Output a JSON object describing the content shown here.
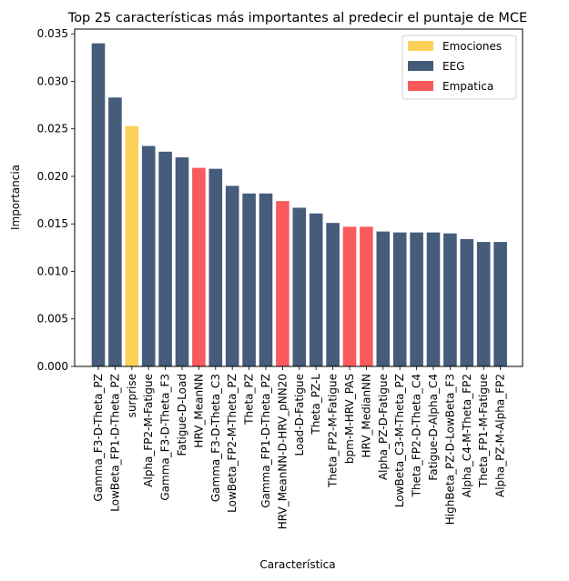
{
  "chart_data": {
    "type": "bar",
    "title": "Top 25 características más importantes al predecir el puntaje de MCE",
    "xlabel": "Característica",
    "ylabel": "Importancia",
    "ylim": [
      0,
      0.0355
    ],
    "yticks": [
      "0.000",
      "0.005",
      "0.010",
      "0.015",
      "0.020",
      "0.025",
      "0.030",
      "0.035"
    ],
    "grid": false,
    "legend_position": "top-right",
    "legend": [
      {
        "name": "Emociones",
        "color": "#FDD05A"
      },
      {
        "name": "EEG",
        "color": "#455C7B"
      },
      {
        "name": "Empatica",
        "color": "#F95A5C"
      }
    ],
    "categories": [
      "Gamma_F3-D-Theta_PZ",
      "LowBeta_FP1-D-Theta_PZ",
      "surprise",
      "Alpha_FP2-M-Fatigue",
      "Gamma_F3-D-Theta_F3",
      "Fatigue-D-Load",
      "HRV_MeanNN",
      "Gamma_F3-D-Theta_C3",
      "LowBeta_FP2-M-Theta_PZ",
      "Theta_PZ",
      "Gamma_FP1-D-Theta_PZ",
      "HRV_MeanNN-D-HRV_pNN20",
      "Load-D-Fatigue",
      "Theta_PZ-L",
      "Theta_FP2-M-Fatigue",
      "bpm-M-HRV_PAS",
      "HRV_MedianNN",
      "Alpha_PZ-D-Fatigue",
      "LowBeta_C3-M-Theta_PZ",
      "Theta_FP2-D-Theta_C4",
      "Fatigue-D-Alpha_C4",
      "HighBeta_PZ-D-LowBeta_F3",
      "Alpha_C4-M-Theta_FP2",
      "Theta_FP1-M-Fatigue",
      "Alpha_PZ-M-Alpha_FP2"
    ],
    "values": [
      0.034,
      0.0283,
      0.0253,
      0.0232,
      0.0226,
      0.022,
      0.0209,
      0.0208,
      0.019,
      0.0182,
      0.0182,
      0.0174,
      0.0167,
      0.0161,
      0.0151,
      0.0147,
      0.0147,
      0.0142,
      0.0141,
      0.0141,
      0.0141,
      0.014,
      0.0134,
      0.0131,
      0.0131
    ],
    "groups": [
      "EEG",
      "EEG",
      "Emociones",
      "EEG",
      "EEG",
      "EEG",
      "Empatica",
      "EEG",
      "EEG",
      "EEG",
      "EEG",
      "Empatica",
      "EEG",
      "EEG",
      "EEG",
      "Empatica",
      "Empatica",
      "EEG",
      "EEG",
      "EEG",
      "EEG",
      "EEG",
      "EEG",
      "EEG",
      "EEG"
    ]
  }
}
